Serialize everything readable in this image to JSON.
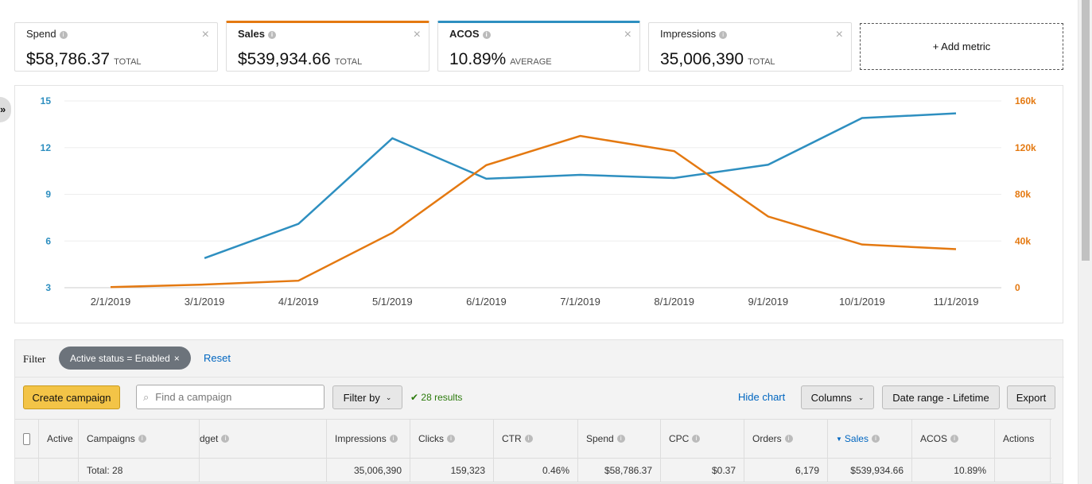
{
  "metrics": [
    {
      "label": "Spend",
      "value": "$58,786.37",
      "unit": "TOTAL",
      "color": ""
    },
    {
      "label": "Sales",
      "value": "$539,934.66",
      "unit": "TOTAL",
      "color": "#e47911"
    },
    {
      "label": "ACOS",
      "value": "10.89%",
      "unit": "AVERAGE",
      "color": "#2e8fc0"
    },
    {
      "label": "Impressions",
      "value": "35,006,390",
      "unit": "TOTAL",
      "color": ""
    }
  ],
  "add_metric": "+ Add metric",
  "side_toggle": "»",
  "chart_data": {
    "type": "line",
    "categories": [
      "2/1/2019",
      "3/1/2019",
      "4/1/2019",
      "5/1/2019",
      "6/1/2019",
      "7/1/2019",
      "8/1/2019",
      "9/1/2019",
      "10/1/2019",
      "11/1/2019"
    ],
    "series": [
      {
        "name": "ACOS",
        "axis": "left",
        "color": "#2e8fc0",
        "values": [
          null,
          4.9,
          7.1,
          12.6,
          10.0,
          10.25,
          10.05,
          10.9,
          13.9,
          14.2
        ]
      },
      {
        "name": "Sales",
        "axis": "right",
        "color": "#e47911",
        "values": [
          500,
          2700,
          6000,
          47000,
          105000,
          130000,
          117000,
          61000,
          37000,
          33000
        ]
      }
    ],
    "left_axis": {
      "ticks": [
        "3",
        "6",
        "9",
        "12",
        "15"
      ],
      "range": [
        3,
        15
      ]
    },
    "right_axis": {
      "ticks": [
        "0",
        "40k",
        "80k",
        "120k",
        "160k"
      ],
      "range": [
        0,
        160000
      ]
    },
    "grid": true
  },
  "filter": {
    "label": "Filter",
    "chip": "Active status = Enabled",
    "reset": "Reset"
  },
  "toolbar": {
    "create": "Create campaign",
    "search_placeholder": "Find a campaign",
    "filter_by": "Filter by",
    "results": "28 results",
    "hide_chart": "Hide chart",
    "columns": "Columns",
    "date_range": "Date range - Lifetime",
    "export": "Export"
  },
  "table": {
    "headers": [
      "",
      "Active",
      "Campaigns",
      "dget",
      "Impressions",
      "Clicks",
      "CTR",
      "Spend",
      "CPC",
      "Orders",
      "Sales",
      "ACOS",
      "Actions"
    ],
    "total": [
      "",
      "",
      "Total: 28",
      "",
      "35,006,390",
      "159,323",
      "0.46%",
      "$58,786.37",
      "$0.37",
      "6,179",
      "$539,934.66",
      "10.89%",
      ""
    ]
  }
}
